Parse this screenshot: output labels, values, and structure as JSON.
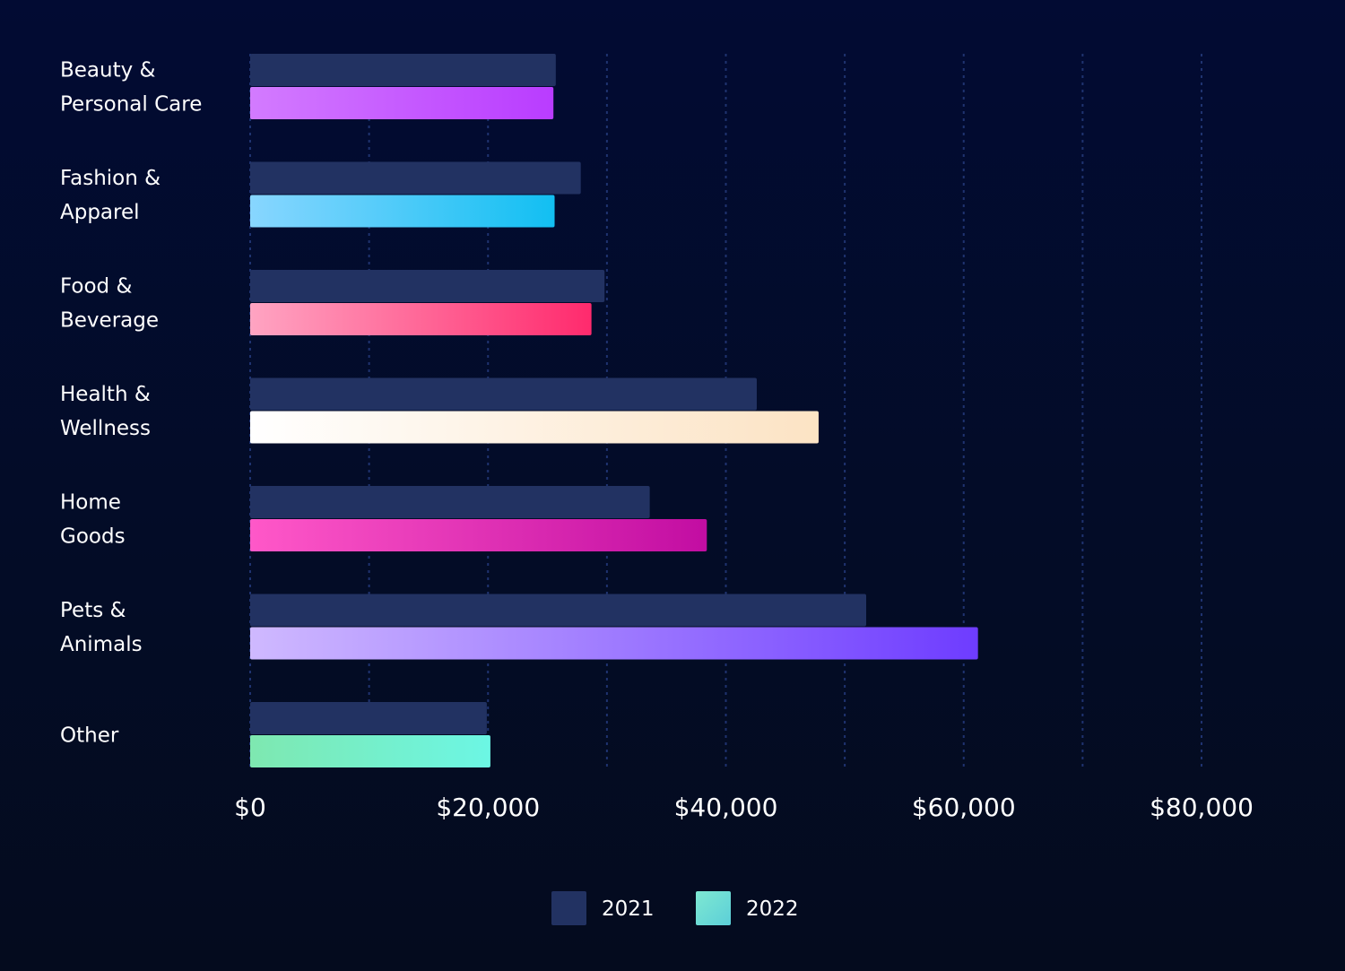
{
  "chart_data": {
    "type": "bar",
    "orientation": "horizontal",
    "categories": [
      [
        "Beauty &",
        "Personal Care"
      ],
      [
        "Fashion &",
        "Apparel"
      ],
      [
        "Food &",
        "Beverage"
      ],
      [
        "Health &",
        "Wellness"
      ],
      [
        "Home",
        "Goods"
      ],
      [
        "Pets &",
        "Animals"
      ],
      [
        "Other"
      ]
    ],
    "series": [
      {
        "name": "2021",
        "color": "#223262",
        "values": [
          25700,
          27800,
          29800,
          42600,
          33600,
          51800,
          19900
        ]
      },
      {
        "name": "2022",
        "color": "#6ee3d0",
        "values": [
          25500,
          25600,
          28700,
          47800,
          38400,
          61200,
          20200
        ]
      }
    ],
    "bar_gradients_2022": [
      [
        "#d37bff",
        "#b93cff"
      ],
      [
        "#88d6ff",
        "#12bff2"
      ],
      [
        "#ffa4c2",
        "#ff2a6d"
      ],
      [
        "#ffffff",
        "#fce3c4"
      ],
      [
        "#ff58c8",
        "#c20da2"
      ],
      [
        "#cfb9ff",
        "#6e3cff"
      ],
      [
        "#7ee8b0",
        "#6cf6e4"
      ]
    ],
    "x_ticks": [
      "$0",
      "$20,000",
      "$40,000",
      "$60,000",
      "$80,000"
    ],
    "x_tick_values": [
      0,
      20000,
      40000,
      60000,
      80000
    ],
    "xlim": [
      0,
      80000
    ],
    "grid": "vertical dashed",
    "legend_position": "bottom-center",
    "title": "",
    "xlabel": "",
    "ylabel": ""
  }
}
